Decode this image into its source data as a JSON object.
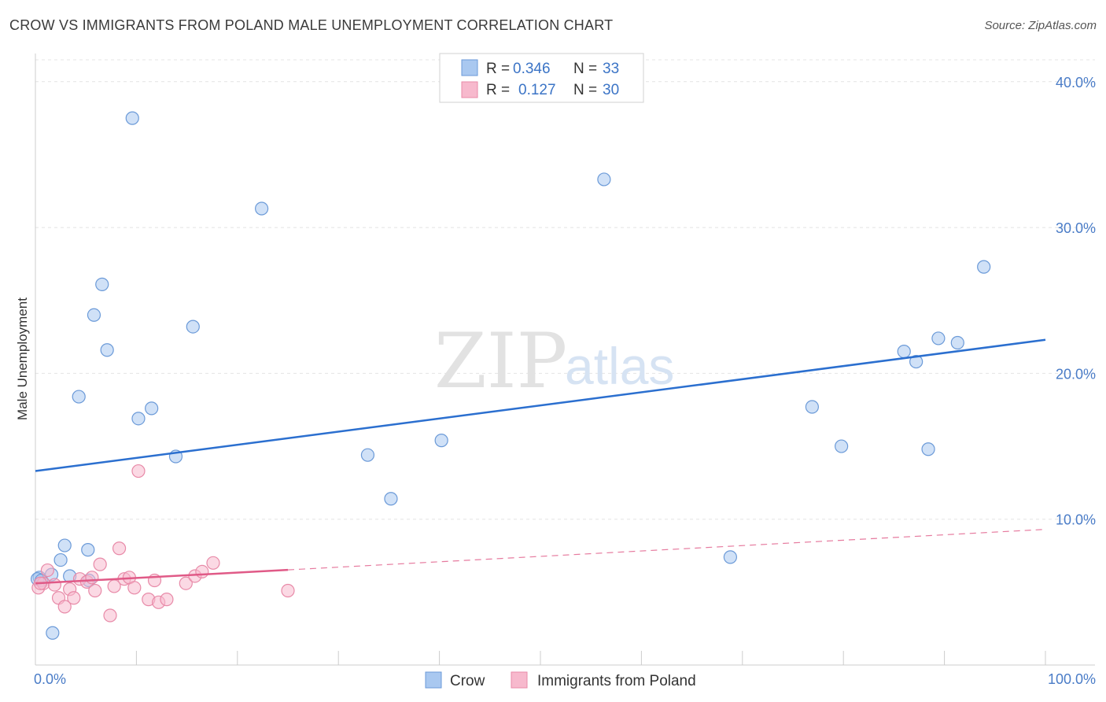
{
  "header": {
    "title": "CROW VS IMMIGRANTS FROM POLAND MALE UNEMPLOYMENT CORRELATION CHART",
    "source": "Source: ZipAtlas.com"
  },
  "watermark": {
    "zip": "ZIP",
    "atlas": "atlas"
  },
  "legend": {
    "rows": [
      {
        "r_label": "R =",
        "r_value": "0.346",
        "n_label": "N =",
        "n_value": "33",
        "color": "#a9c8f0"
      },
      {
        "r_label": "R =",
        "r_value": "0.127",
        "n_label": "N =",
        "n_value": "30",
        "color": "#f7b9cd"
      }
    ]
  },
  "chart_data": {
    "type": "scatter",
    "title": "CROW VS IMMIGRANTS FROM POLAND MALE UNEMPLOYMENT CORRELATION CHART",
    "xlabel": "",
    "ylabel": "Male Unemployment",
    "xlim": [
      0,
      100
    ],
    "ylim": [
      0,
      41.5
    ],
    "x_tick_labels": [
      "0.0%",
      "100.0%"
    ],
    "y_ticks": [
      10,
      20,
      30,
      40
    ],
    "y_tick_labels": [
      "10.0%",
      "20.0%",
      "30.0%",
      "40.0%"
    ],
    "grid": true,
    "legend_position": "top-center",
    "series": [
      {
        "name": "Crow",
        "color": "#a9c8f0",
        "stroke": "#6b9ad8",
        "trend_color": "#2b6fcf",
        "trend": {
          "x": [
            0,
            100
          ],
          "y": [
            13.3,
            22.3
          ],
          "dashed_from": null
        },
        "points": [
          [
            0.4,
            6.0
          ],
          [
            1.6,
            6.2
          ],
          [
            1.7,
            2.2
          ],
          [
            2.5,
            7.2
          ],
          [
            2.9,
            8.2
          ],
          [
            3.4,
            6.1
          ],
          [
            4.3,
            18.4
          ],
          [
            5.2,
            7.9
          ],
          [
            5.3,
            5.8
          ],
          [
            5.8,
            24.0
          ],
          [
            6.6,
            26.1
          ],
          [
            7.1,
            21.6
          ],
          [
            9.6,
            37.5
          ],
          [
            10.2,
            16.9
          ],
          [
            11.5,
            17.6
          ],
          [
            13.9,
            14.3
          ],
          [
            15.6,
            23.2
          ],
          [
            22.4,
            31.3
          ],
          [
            32.9,
            14.4
          ],
          [
            35.2,
            11.4
          ],
          [
            40.2,
            15.4
          ],
          [
            56.3,
            33.3
          ],
          [
            68.8,
            7.4
          ],
          [
            76.9,
            17.7
          ],
          [
            79.8,
            15.0
          ],
          [
            86.0,
            21.5
          ],
          [
            87.2,
            20.8
          ],
          [
            88.4,
            14.8
          ],
          [
            89.4,
            22.4
          ],
          [
            91.3,
            22.1
          ],
          [
            93.9,
            27.3
          ],
          [
            0.2,
            5.9
          ],
          [
            0.6,
            5.8
          ]
        ]
      },
      {
        "name": "Immigrants from Poland",
        "color": "#f7b9cd",
        "stroke": "#e88aa8",
        "trend_color": "#e05a87",
        "trend": {
          "x": [
            0,
            100
          ],
          "y": [
            5.6,
            9.3
          ],
          "solid_until": 25
        },
        "points": [
          [
            0.3,
            5.3
          ],
          [
            0.8,
            5.6
          ],
          [
            1.2,
            6.5
          ],
          [
            1.9,
            5.5
          ],
          [
            2.3,
            4.6
          ],
          [
            2.9,
            4.0
          ],
          [
            3.4,
            5.2
          ],
          [
            3.8,
            4.6
          ],
          [
            4.4,
            5.9
          ],
          [
            5.1,
            5.7
          ],
          [
            5.6,
            6.0
          ],
          [
            5.9,
            5.1
          ],
          [
            6.4,
            6.9
          ],
          [
            7.4,
            3.4
          ],
          [
            7.8,
            5.4
          ],
          [
            8.3,
            8.0
          ],
          [
            8.8,
            5.9
          ],
          [
            9.3,
            6.0
          ],
          [
            9.8,
            5.3
          ],
          [
            10.2,
            13.3
          ],
          [
            11.2,
            4.5
          ],
          [
            11.8,
            5.8
          ],
          [
            12.2,
            4.3
          ],
          [
            13.0,
            4.5
          ],
          [
            14.9,
            5.6
          ],
          [
            15.8,
            6.1
          ],
          [
            16.5,
            6.4
          ],
          [
            17.6,
            7.0
          ],
          [
            25.0,
            5.1
          ],
          [
            0.5,
            5.6
          ]
        ]
      }
    ]
  }
}
